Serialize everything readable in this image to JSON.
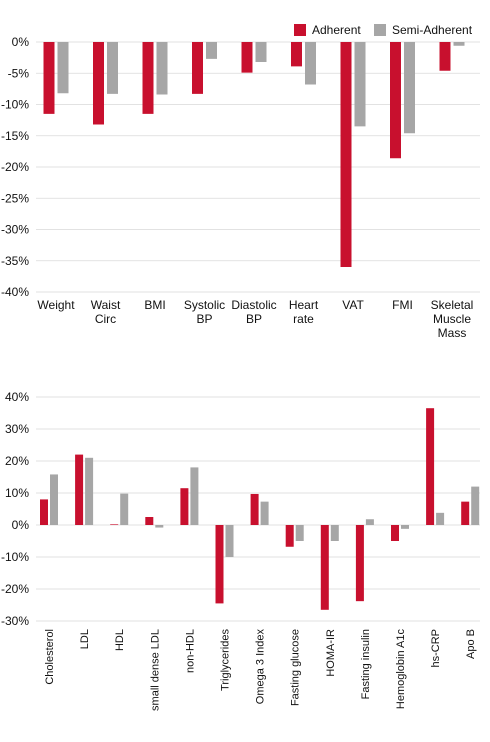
{
  "colors": {
    "adherent": "#c8102e",
    "semi_adherent": "#a6a6a6"
  },
  "legend": [
    {
      "name": "Adherent",
      "color": "#c8102e"
    },
    {
      "name": "Semi-Adherent",
      "color": "#a6a6a6"
    }
  ],
  "chart_data": [
    {
      "type": "bar",
      "title": "",
      "xlabel": "",
      "ylabel": "",
      "ylim": [
        -40,
        0
      ],
      "yticks": [
        0,
        -5,
        -10,
        -15,
        -20,
        -25,
        -30,
        -35,
        -40
      ],
      "ytick_labels": [
        "0%",
        "-5%",
        "-10%",
        "-15%",
        "-20%",
        "-25%",
        "-30%",
        "-35%",
        "-40%"
      ],
      "grid": "horizontal",
      "legend": "top-right",
      "categories": [
        [
          "Weight"
        ],
        [
          "Waist",
          "Circ"
        ],
        [
          "BMI"
        ],
        [
          "Systolic",
          "BP"
        ],
        [
          "Diastolic",
          "BP"
        ],
        [
          "Heart",
          "rate"
        ],
        [
          "VAT"
        ],
        [
          "FMI"
        ],
        [
          "Skeletal",
          "Muscle",
          "Mass"
        ]
      ],
      "series": [
        {
          "name": "Adherent",
          "values": [
            -11.5,
            -13.2,
            -11.5,
            -8.3,
            -4.9,
            -3.9,
            -36.0,
            -18.6,
            -4.6
          ]
        },
        {
          "name": "Semi-Adherent",
          "values": [
            -8.2,
            -8.3,
            -8.4,
            -2.7,
            -3.2,
            -6.8,
            -13.5,
            -14.6,
            -0.6
          ]
        }
      ]
    },
    {
      "type": "bar",
      "title": "",
      "xlabel": "",
      "ylabel": "",
      "ylim": [
        -30,
        40
      ],
      "yticks": [
        40,
        30,
        20,
        10,
        0,
        -10,
        -20,
        -30
      ],
      "ytick_labels": [
        "40%",
        "30%",
        "20%",
        "10%",
        "0%",
        "-10%",
        "-20%",
        "-30%"
      ],
      "grid": "horizontal",
      "categories": [
        [
          "Cholesterol"
        ],
        [
          "LDL"
        ],
        [
          "HDL"
        ],
        [
          "small dense LDL"
        ],
        [
          "non-HDL"
        ],
        [
          "Triglycerides"
        ],
        [
          "Omega 3 Index"
        ],
        [
          "Fasting glucose"
        ],
        [
          "HOMA-IR"
        ],
        [
          "Fasting insulin"
        ],
        [
          "Hemoglobin A1c"
        ],
        [
          "hs-CRP"
        ],
        [
          "Apo B"
        ]
      ],
      "series": [
        {
          "name": "Adherent",
          "values": [
            8.0,
            22.0,
            0.2,
            2.5,
            11.5,
            -24.5,
            9.7,
            -6.8,
            -26.5,
            -23.8,
            -5.0,
            36.5,
            7.3
          ]
        },
        {
          "name": "Semi-Adherent",
          "values": [
            15.8,
            21.0,
            9.8,
            -0.8,
            18.0,
            -10.0,
            7.3,
            -5.0,
            -5.0,
            1.8,
            -1.2,
            3.8,
            12.0
          ]
        }
      ]
    }
  ]
}
